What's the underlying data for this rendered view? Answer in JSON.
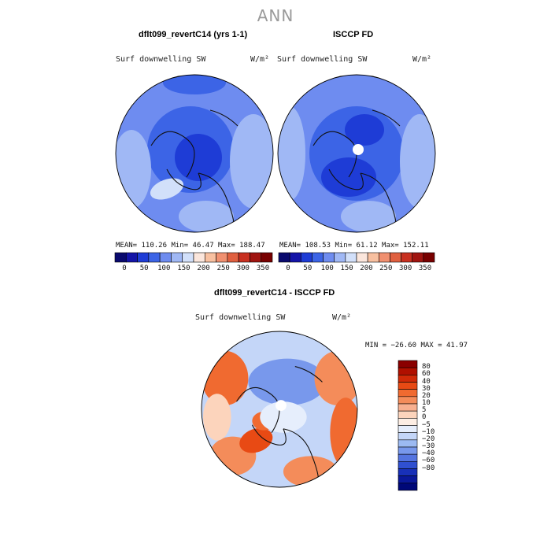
{
  "title": "ANN",
  "panels": [
    {
      "heading": "dflt099_revertC14 (yrs 1-1)",
      "variable": "Surf downwelling SW",
      "units": "W/m²",
      "stats": "MEAN= 110.26   Min=  46.47   Max= 188.47"
    },
    {
      "heading": "ISCCP FD",
      "variable": "Surf downwelling SW",
      "units": "W/m²",
      "stats": "MEAN= 108.53   Min=  61.12   Max= 152.11"
    }
  ],
  "abs_colorbar": {
    "colors": [
      "#0a0a6e",
      "#1414a8",
      "#1e3cd6",
      "#3c64e6",
      "#6e8cf0",
      "#a0b8f5",
      "#d2e0fa",
      "#fbe6dc",
      "#f8c0a0",
      "#f09070",
      "#e06040",
      "#c83020",
      "#a01410",
      "#780000"
    ],
    "ticks": [
      "0",
      "50",
      "100",
      "150",
      "200",
      "250",
      "300",
      "350"
    ]
  },
  "diff_panel": {
    "heading": "dflt099_revertC14 - ISCCP FD",
    "variable": "Surf downwelling SW",
    "units": "W/m²",
    "minmax": "MIN = −26.60  MAX =  41.97"
  },
  "diff_colorbar": {
    "colors": [
      "#8a0000",
      "#b01000",
      "#d02a08",
      "#e84a14",
      "#f06a30",
      "#f48c5a",
      "#f8b090",
      "#fcd4bc",
      "#fdeee4",
      "#e6eefc",
      "#c4d6f8",
      "#9cbaf2",
      "#7898ec",
      "#5474e0",
      "#3050d0",
      "#1830b8",
      "#0a189a",
      "#000878"
    ],
    "ticks": [
      "80",
      "60",
      "40",
      "30",
      "20",
      "10",
      "5",
      "0",
      "−5",
      "−10",
      "−20",
      "−30",
      "−40",
      "−60",
      "−80"
    ]
  }
}
